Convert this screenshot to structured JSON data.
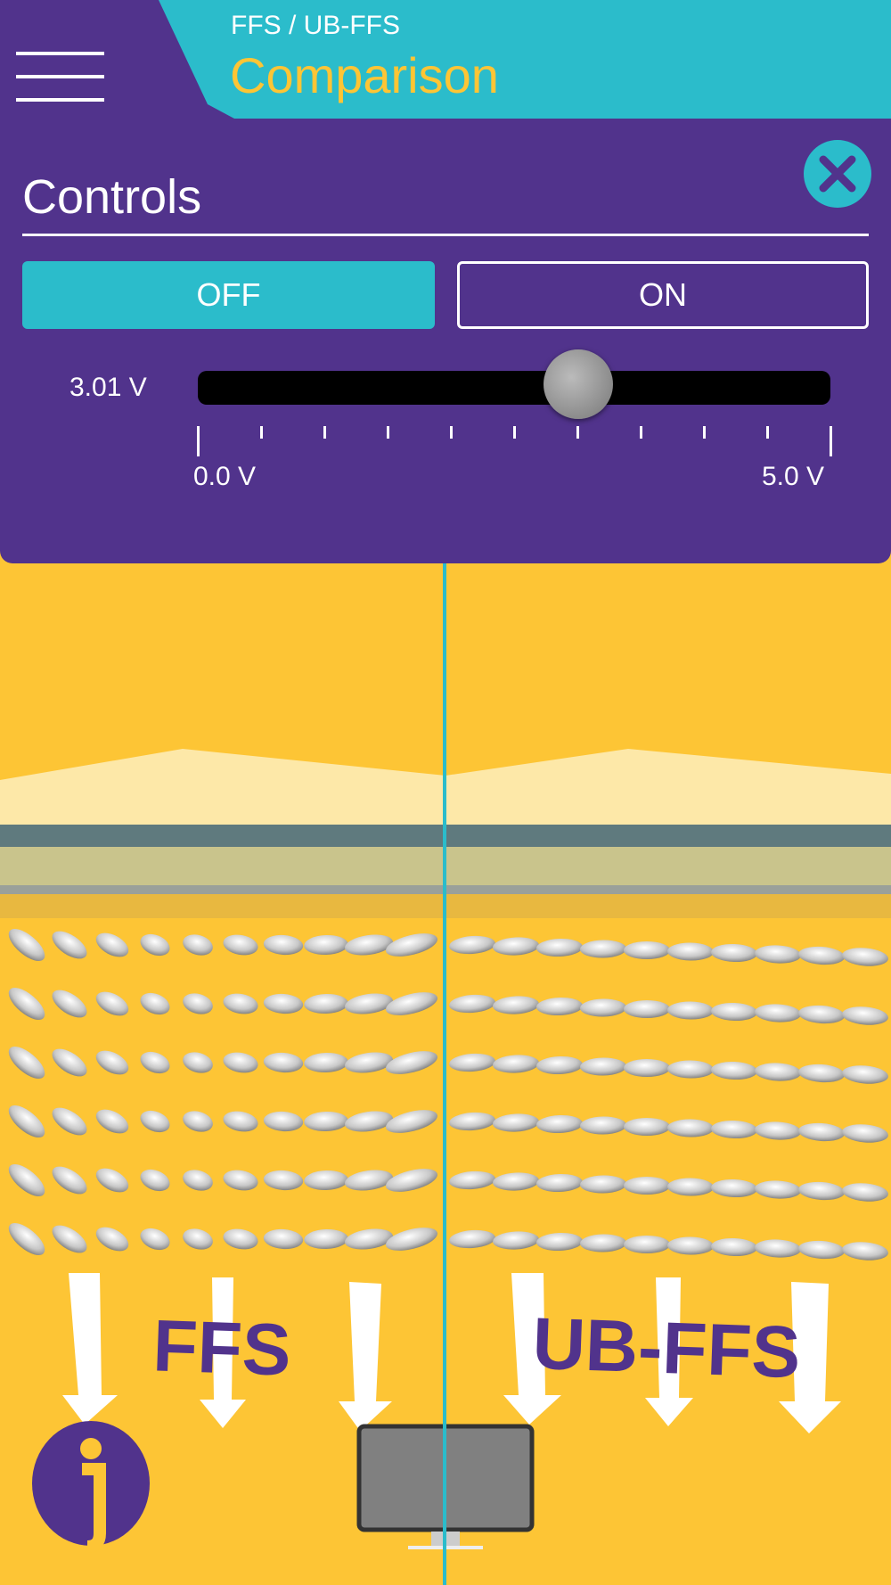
{
  "header": {
    "breadcrumb": "FFS / UB-FFS",
    "title": "Comparison"
  },
  "controls": {
    "title": "Controls",
    "buttons": [
      "OFF",
      "ON"
    ],
    "slider": {
      "value": 3.01,
      "value_label": "3.01 V",
      "min": 0,
      "max": 5,
      "min_label": "0.0 V",
      "max_label": "5.0 V"
    }
  },
  "scene": {
    "labels": [
      "FFS",
      "UB-FFS"
    ]
  }
}
